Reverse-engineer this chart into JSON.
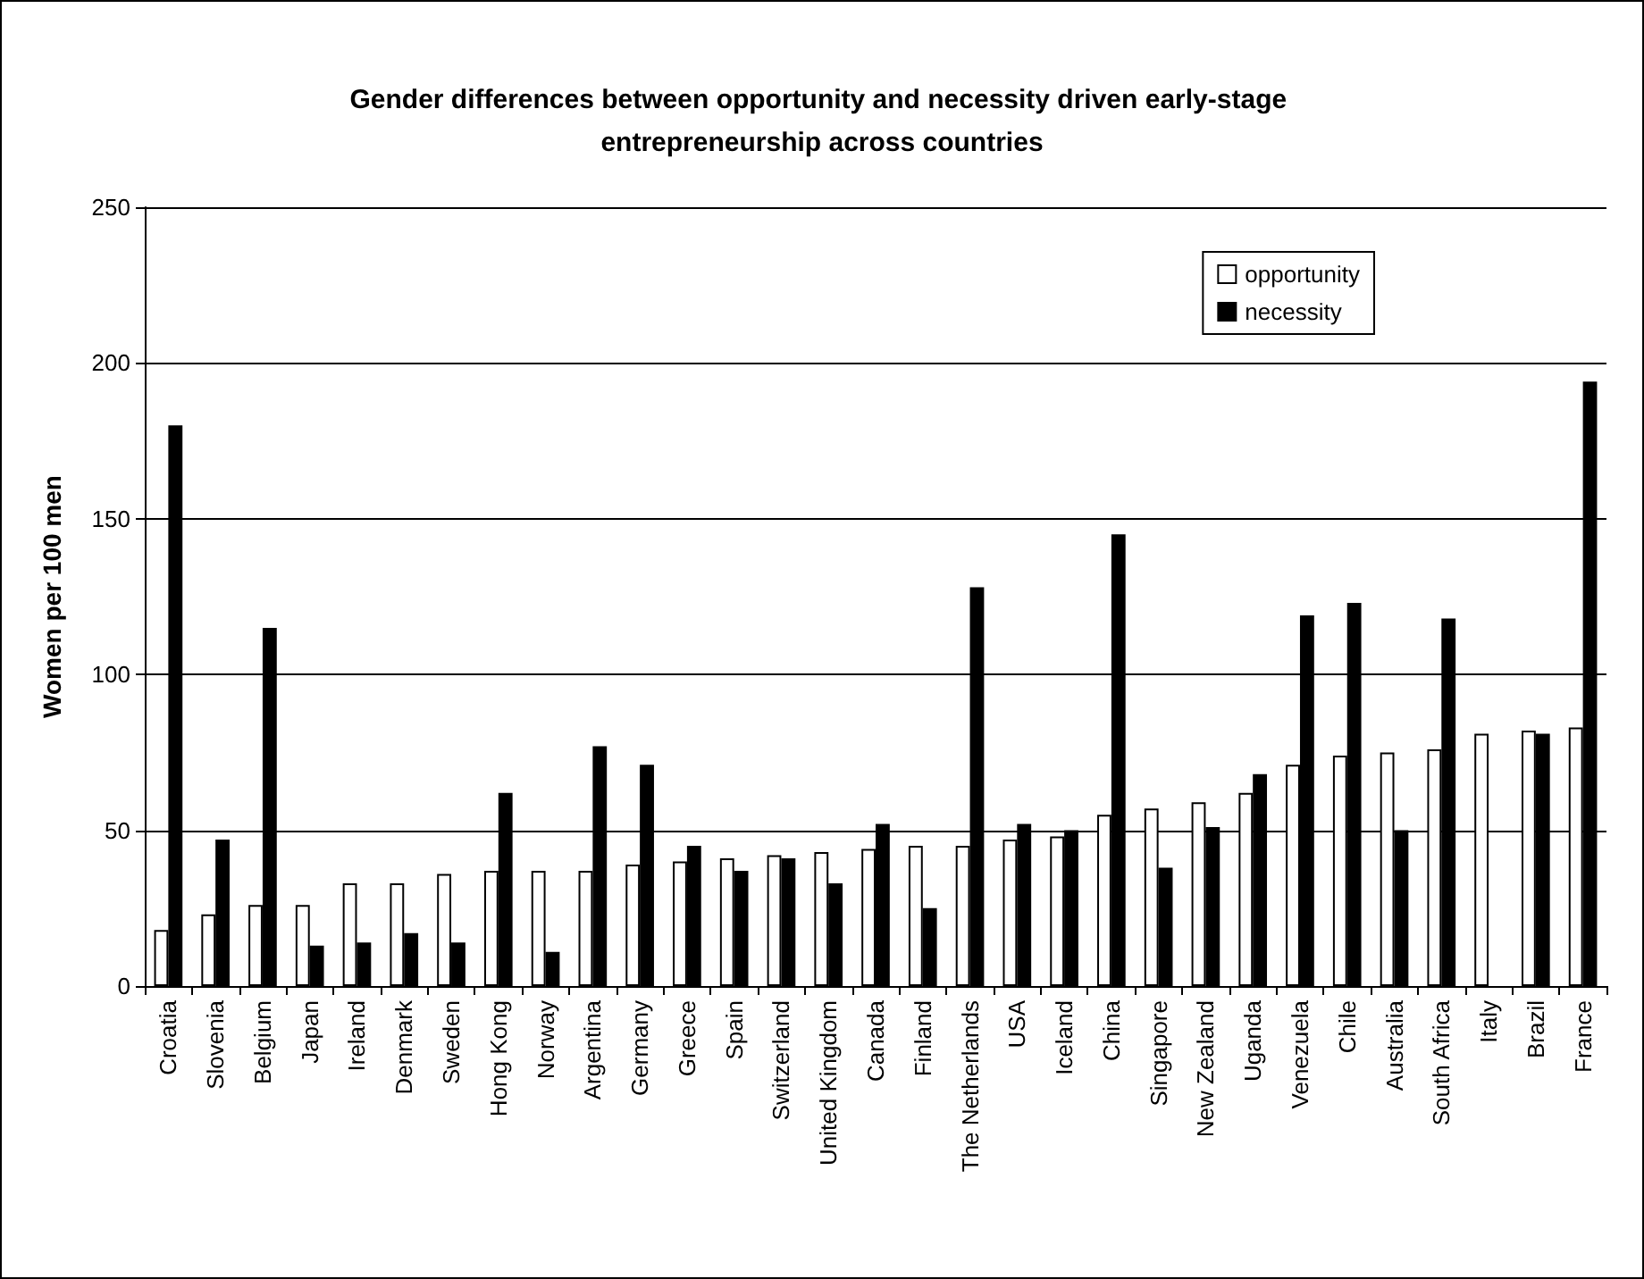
{
  "chart_data": {
    "type": "bar",
    "title": "Gender differences between opportunity and necessity driven early-stage entrepreneurship across countries",
    "ylabel": "Women per 100 men",
    "categories": [
      "Croatia",
      "Slovenia",
      "Belgium",
      "Japan",
      "Ireland",
      "Denmark",
      "Sweden",
      "Hong Kong",
      "Norway",
      "Argentina",
      "Germany",
      "Greece",
      "Spain",
      "Switzerland",
      "United Kingdom",
      "Canada",
      "Finland",
      "The Netherlands",
      "USA",
      "Iceland",
      "China",
      "Singapore",
      "New Zealand",
      "Uganda",
      "Venezuela",
      "Chile",
      "Australia",
      "South Africa",
      "Italy",
      "Brazil",
      "France"
    ],
    "series": [
      {
        "name": "opportunity",
        "color": "#ffffff",
        "values": [
          18,
          23,
          26,
          26,
          33,
          33,
          36,
          37,
          37,
          37,
          39,
          40,
          41,
          42,
          43,
          44,
          45,
          45,
          47,
          48,
          55,
          57,
          59,
          62,
          71,
          74,
          75,
          76,
          81,
          82,
          83
        ]
      },
      {
        "name": "necessity",
        "color": "#000000",
        "values": [
          180,
          47,
          115,
          13,
          14,
          17,
          14,
          62,
          11,
          77,
          71,
          45,
          37,
          41,
          33,
          52,
          25,
          128,
          52,
          50,
          145,
          38,
          51,
          68,
          119,
          123,
          50,
          118,
          null,
          81,
          194
        ]
      }
    ],
    "ylim": [
      0,
      250
    ],
    "yticks": [
      0,
      50,
      100,
      150,
      200,
      250
    ],
    "grid": "y",
    "legend": "top right"
  }
}
